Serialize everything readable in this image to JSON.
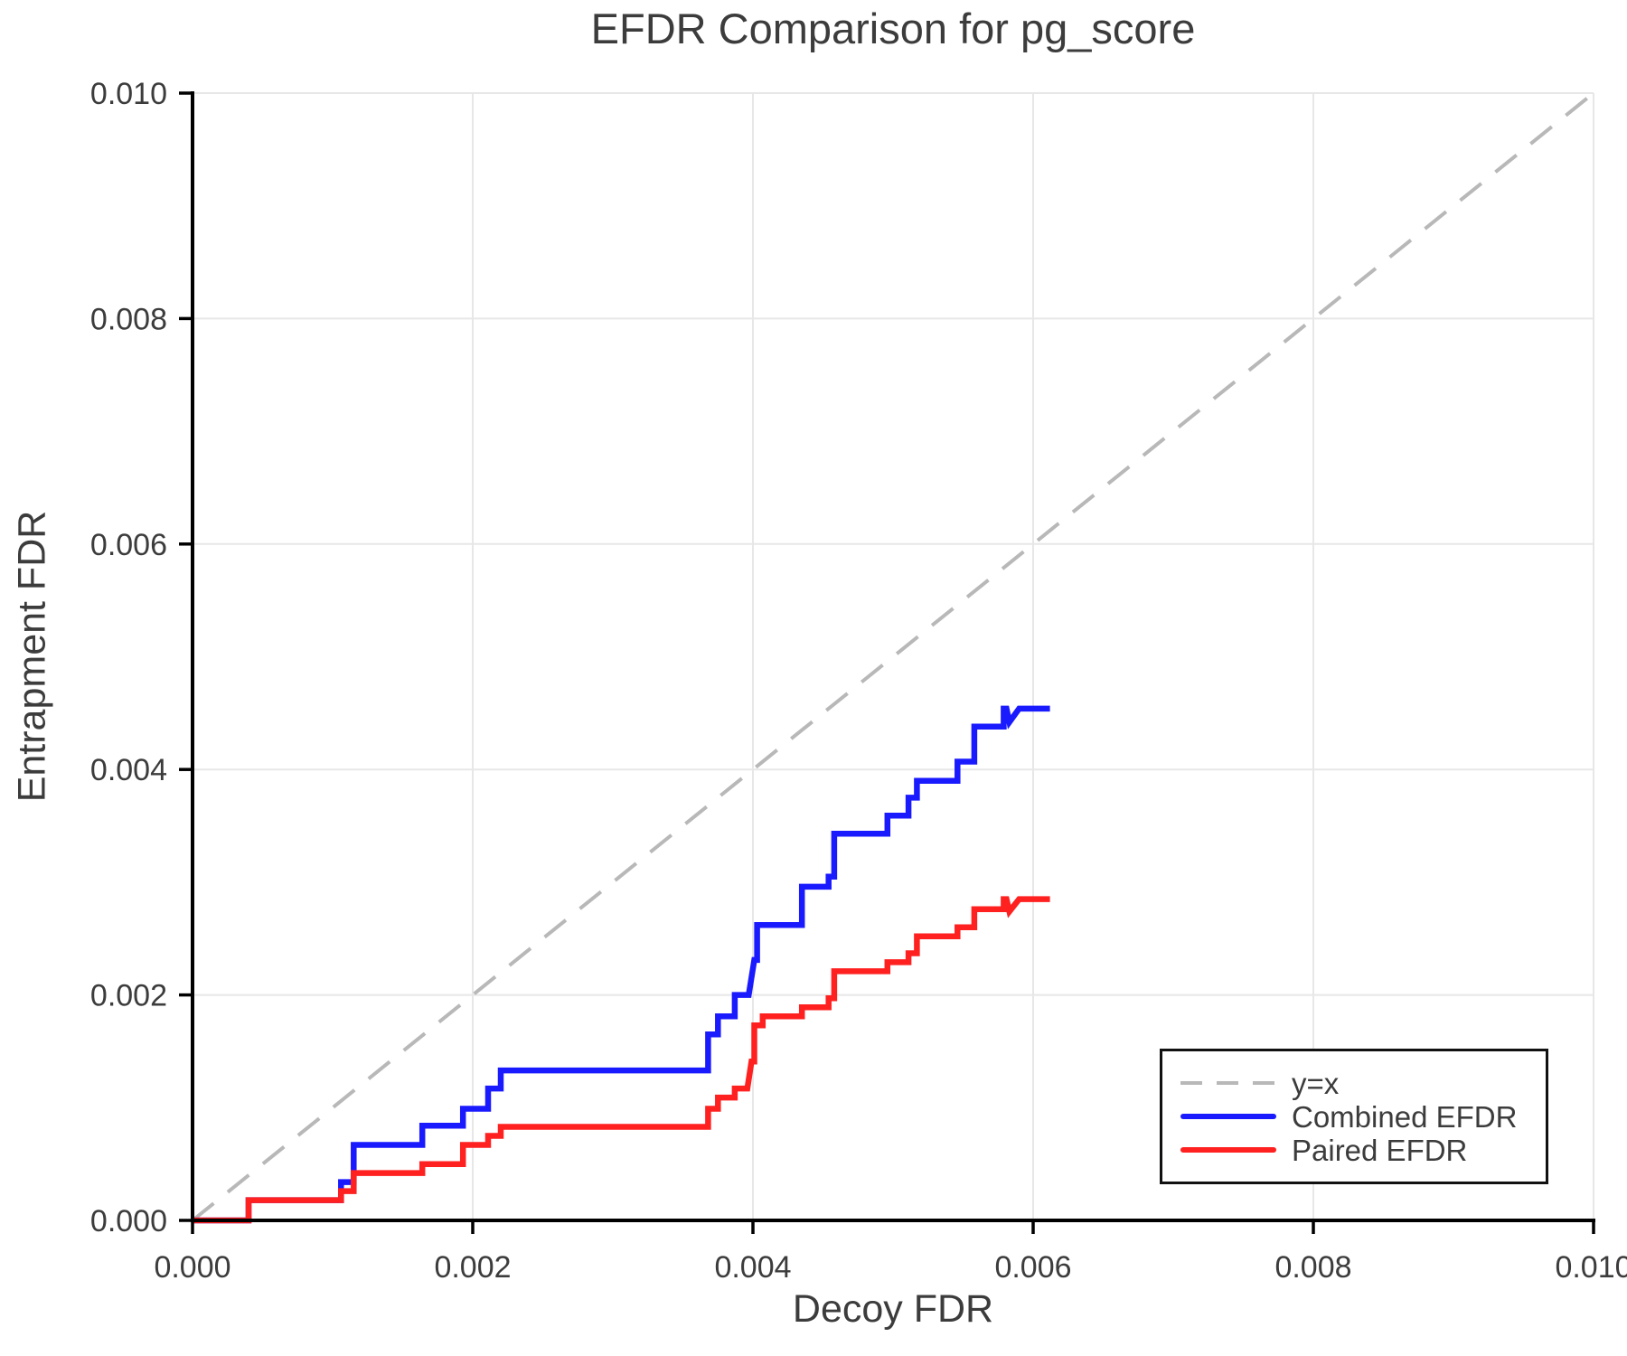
{
  "chart_data": {
    "type": "line",
    "title": "EFDR Comparison for pg_score",
    "xlabel": "Decoy FDR",
    "ylabel": "Entrapment FDR",
    "xlim": [
      0,
      0.01
    ],
    "ylim": [
      0,
      0.01
    ],
    "grid": true,
    "legend_position": "lower right",
    "xticks": {
      "values": [
        0.0,
        0.002,
        0.004,
        0.006,
        0.008,
        0.01
      ],
      "labels": [
        "0.000",
        "0.002",
        "0.004",
        "0.006",
        "0.008",
        "0.010"
      ]
    },
    "yticks": {
      "values": [
        0.0,
        0.002,
        0.004,
        0.006,
        0.008,
        0.01
      ],
      "labels": [
        "0.000",
        "0.002",
        "0.004",
        "0.006",
        "0.008",
        "0.010"
      ]
    },
    "colors": {
      "identity_line": "#b8b8b8",
      "combined": "#1a1aff",
      "paired": "#ff2020",
      "grid": "#e7e7e7",
      "spine": "#000000",
      "text": "#3c3c3c"
    },
    "series": [
      {
        "name": "y=x",
        "style": "dashed",
        "color": "#b8b8b8",
        "points": [
          [
            0,
            0
          ],
          [
            0.01,
            0.01
          ]
        ]
      },
      {
        "name": "Combined EFDR",
        "style": "solid",
        "color": "#1a1aff",
        "points": [
          [
            0.0,
            0.0
          ],
          [
            0.0004,
            0.0
          ],
          [
            0.0004,
            0.00018
          ],
          [
            0.00106,
            0.00018
          ],
          [
            0.00106,
            0.00034
          ],
          [
            0.00115,
            0.00034
          ],
          [
            0.00115,
            0.00067
          ],
          [
            0.00164,
            0.00067
          ],
          [
            0.00164,
            0.00084
          ],
          [
            0.00193,
            0.00084
          ],
          [
            0.00193,
            0.00099
          ],
          [
            0.00211,
            0.00099
          ],
          [
            0.00211,
            0.00117
          ],
          [
            0.0022,
            0.00117
          ],
          [
            0.0022,
            0.00133
          ],
          [
            0.00368,
            0.00133
          ],
          [
            0.00368,
            0.00165
          ],
          [
            0.00375,
            0.00165
          ],
          [
            0.00375,
            0.00181
          ],
          [
            0.00387,
            0.00181
          ],
          [
            0.00387,
            0.002
          ],
          [
            0.00397,
            0.002
          ],
          [
            0.00401,
            0.00231
          ],
          [
            0.00403,
            0.00231
          ],
          [
            0.00403,
            0.00262
          ],
          [
            0.00435,
            0.00262
          ],
          [
            0.00435,
            0.00296
          ],
          [
            0.00454,
            0.00296
          ],
          [
            0.00454,
            0.00305
          ],
          [
            0.00458,
            0.00305
          ],
          [
            0.00458,
            0.00343
          ],
          [
            0.00496,
            0.00343
          ],
          [
            0.00496,
            0.00359
          ],
          [
            0.00511,
            0.00359
          ],
          [
            0.00511,
            0.00375
          ],
          [
            0.00517,
            0.00375
          ],
          [
            0.00517,
            0.0039
          ],
          [
            0.00546,
            0.0039
          ],
          [
            0.00546,
            0.00407
          ],
          [
            0.00558,
            0.00407
          ],
          [
            0.00558,
            0.00438
          ],
          [
            0.00579,
            0.00438
          ],
          [
            0.00579,
            0.00454
          ],
          [
            0.00581,
            0.00454
          ],
          [
            0.00583,
            0.00442
          ],
          [
            0.0059,
            0.00454
          ],
          [
            0.00612,
            0.00454
          ]
        ]
      },
      {
        "name": "Paired EFDR",
        "style": "solid",
        "color": "#ff2020",
        "points": [
          [
            0.0,
            0.0
          ],
          [
            0.0004,
            0.0
          ],
          [
            0.0004,
            0.00018
          ],
          [
            0.00106,
            0.00018
          ],
          [
            0.00106,
            0.00026
          ],
          [
            0.00115,
            0.00026
          ],
          [
            0.00115,
            0.00042
          ],
          [
            0.00164,
            0.00042
          ],
          [
            0.00164,
            0.0005
          ],
          [
            0.00193,
            0.0005
          ],
          [
            0.00193,
            0.00067
          ],
          [
            0.00211,
            0.00067
          ],
          [
            0.00211,
            0.00075
          ],
          [
            0.0022,
            0.00075
          ],
          [
            0.0022,
            0.00083
          ],
          [
            0.00368,
            0.00083
          ],
          [
            0.00368,
            0.00099
          ],
          [
            0.00375,
            0.00099
          ],
          [
            0.00375,
            0.00109
          ],
          [
            0.00387,
            0.00109
          ],
          [
            0.00387,
            0.00117
          ],
          [
            0.00396,
            0.00117
          ],
          [
            0.00399,
            0.00141
          ],
          [
            0.00401,
            0.00141
          ],
          [
            0.00401,
            0.00173
          ],
          [
            0.00407,
            0.00173
          ],
          [
            0.00407,
            0.00181
          ],
          [
            0.00435,
            0.00181
          ],
          [
            0.00435,
            0.00189
          ],
          [
            0.00454,
            0.00189
          ],
          [
            0.00454,
            0.00197
          ],
          [
            0.00458,
            0.00197
          ],
          [
            0.00458,
            0.00221
          ],
          [
            0.00496,
            0.00221
          ],
          [
            0.00496,
            0.00229
          ],
          [
            0.00511,
            0.00229
          ],
          [
            0.00511,
            0.00237
          ],
          [
            0.00517,
            0.00237
          ],
          [
            0.00517,
            0.00252
          ],
          [
            0.00546,
            0.00252
          ],
          [
            0.00546,
            0.0026
          ],
          [
            0.00558,
            0.0026
          ],
          [
            0.00558,
            0.00276
          ],
          [
            0.00579,
            0.00276
          ],
          [
            0.00579,
            0.00285
          ],
          [
            0.00581,
            0.00285
          ],
          [
            0.00583,
            0.00274
          ],
          [
            0.0059,
            0.00285
          ],
          [
            0.00612,
            0.00285
          ]
        ]
      }
    ]
  }
}
